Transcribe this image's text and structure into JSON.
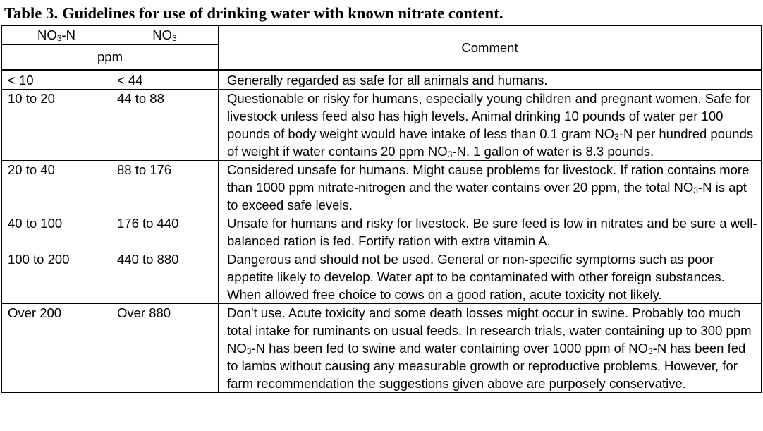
{
  "title": "Table 3.  Guidelines for use of drinking water with known nitrate content.",
  "header": {
    "col1": "NO3-N",
    "col2": "NO3",
    "unit": "ppm",
    "comment": "Comment"
  },
  "rows": [
    {
      "no3n": "< 10",
      "no3": "< 44",
      "comment": "Generally regarded as safe for all animals and humans."
    },
    {
      "no3n": "10 to 20",
      "no3": "44 to 88",
      "comment": "Questionable or risky for humans, especially young children and pregnant women.  Safe for livestock unless feed also has high levels.  Animal drinking 10 pounds of water per 100 pounds of body weight would have intake of less than 0.1 gram NO3-N per hundred pounds of weight if water contains 20 ppm NO3-N. 1 gallon of water is 8.3 pounds."
    },
    {
      "no3n": "20 to 40",
      "no3": "88 to 176",
      "comment": "Considered unsafe for humans.  Might cause problems for livestock.  If ration contains more than 1000 ppm nitrate-nitrogen and the water contains over 20 ppm, the total NO3-N is apt to exceed safe levels."
    },
    {
      "no3n": "40 to 100",
      "no3": "176 to 440",
      "comment": "Unsafe for humans and risky for livestock.  Be sure feed is low in nitrates and be sure a well-balanced ration is fed.  Fortify ration with extra vitamin A."
    },
    {
      "no3n": "100 to 200",
      "no3": "440 to 880",
      "comment": "Dangerous and should not be used.  General or non-specific symptoms such as poor appetite likely to develop.  Water apt to be contaminated with other foreign substances. When allowed free choice to cows on a good ration, acute toxicity not likely."
    },
    {
      "no3n": "Over 200",
      "no3": "Over 880",
      "comment": "Don't use.  Acute toxicity and some death losses might occur in swine.  Probably too much total intake for ruminants on usual feeds.  In research trials, water containing up to 300 ppm NO3-N has been fed to swine and water containing over 1000 ppm of NO3-N has been fed to lambs without causing any measurable growth or reproductive problems. However, for farm recommendation the suggestions given above are purposely conservative."
    }
  ]
}
